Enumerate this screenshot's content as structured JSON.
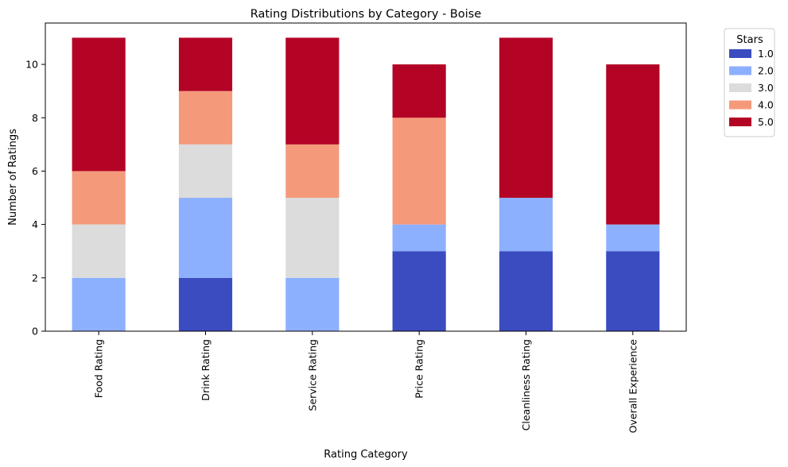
{
  "chart_data": {
    "type": "bar",
    "stacked": true,
    "title": "Rating Distributions by Category - Boise",
    "xlabel": "Rating Category",
    "ylabel": "Number of Ratings",
    "ylim": [
      0,
      11.55
    ],
    "yticks": [
      0,
      2,
      4,
      6,
      8,
      10
    ],
    "grid": false,
    "legend": {
      "title": "Stars",
      "placement": "outside top-right"
    },
    "categories": [
      "Food Rating",
      "Drink Rating",
      "Service Rating",
      "Price Rating",
      "Cleanliness Rating",
      "Overall Experience"
    ],
    "series": [
      {
        "name": "1.0",
        "color": "#3b4cc0",
        "values": [
          0,
          2,
          0,
          3,
          3,
          3
        ]
      },
      {
        "name": "2.0",
        "color": "#8db0fe",
        "values": [
          2,
          3,
          2,
          1,
          2,
          1
        ]
      },
      {
        "name": "3.0",
        "color": "#dddcdc",
        "values": [
          2,
          2,
          3,
          0,
          0,
          0
        ]
      },
      {
        "name": "4.0",
        "color": "#f49a7b",
        "values": [
          2,
          2,
          2,
          4,
          0,
          0
        ]
      },
      {
        "name": "5.0",
        "color": "#b40426",
        "values": [
          5,
          2,
          4,
          2,
          6,
          6
        ]
      }
    ]
  }
}
